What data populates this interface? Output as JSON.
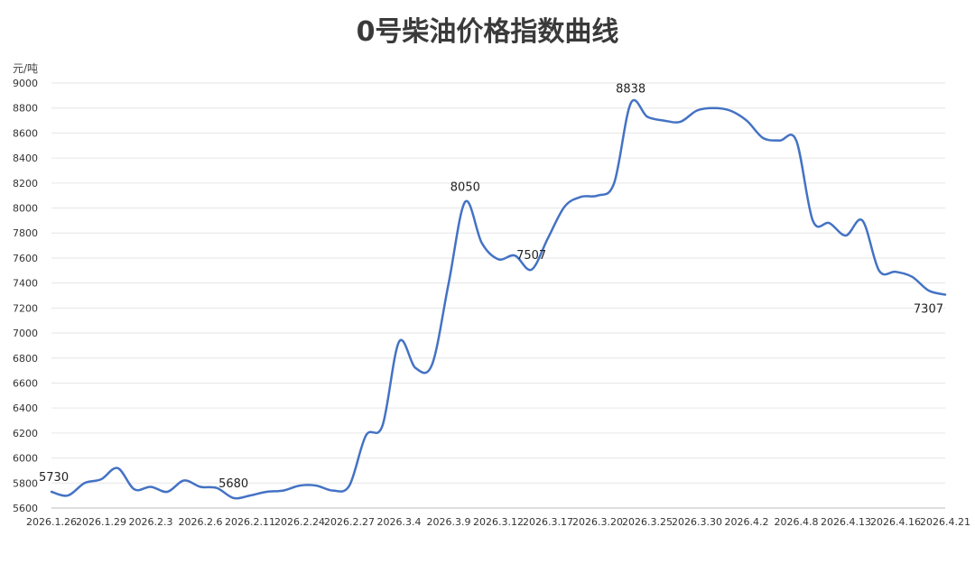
{
  "chart_data": {
    "type": "line",
    "title": "0号柴油价格指数曲线",
    "ylabel": "元/吨",
    "ylim": [
      5600,
      9000
    ],
    "ytick_step": 200,
    "grid": true,
    "x_labels": [
      "2026.1.26",
      "2026.1.29",
      "2026.2.3",
      "2026.2.6",
      "2026.2.11",
      "2026.2.24",
      "2026.2.27",
      "2026.3.4",
      "2026.3.9",
      "2026.3.12",
      "2026.3.17",
      "2026.3.20",
      "2026.3.25",
      "2026.3.30",
      "2026.4.2",
      "2026.4.8",
      "2026.4.13",
      "2026.4.16",
      "2026.4.21"
    ],
    "series": [
      {
        "color": "#4472c4",
        "values": [
          5730,
          5700,
          5800,
          5830,
          5920,
          5750,
          5770,
          5730,
          5820,
          5770,
          5760,
          5680,
          5700,
          5730,
          5740,
          5780,
          5780,
          5740,
          5780,
          6180,
          6260,
          6930,
          6720,
          6750,
          7400,
          8050,
          7720,
          7590,
          7620,
          7507,
          7760,
          8010,
          8090,
          8100,
          8200,
          8838,
          8730,
          8700,
          8690,
          8780,
          8800,
          8780,
          8700,
          8560,
          8540,
          8540,
          7900,
          7880,
          7780,
          7900,
          7500,
          7490,
          7450,
          7340,
          7307
        ]
      }
    ],
    "data_labels": [
      {
        "index": 0,
        "text": "5730"
      },
      {
        "index": 11,
        "text": "5680"
      },
      {
        "index": 25,
        "text": "8050"
      },
      {
        "index": 29,
        "text": "7507"
      },
      {
        "index": 35,
        "text": "8838"
      },
      {
        "index": 54,
        "text": "7307"
      }
    ]
  }
}
